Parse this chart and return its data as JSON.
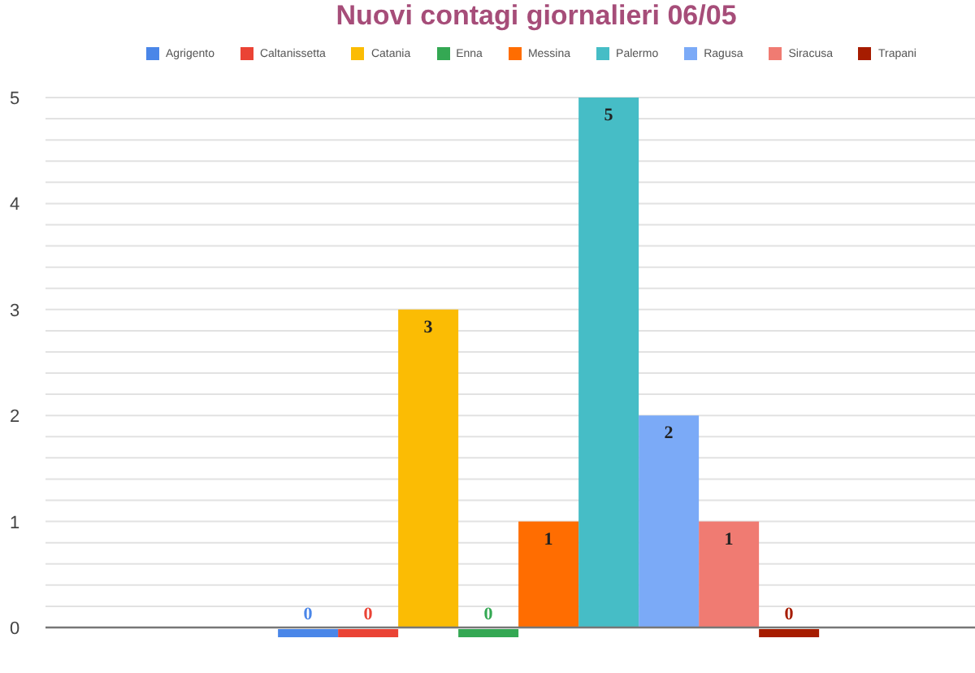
{
  "chart_data": {
    "type": "bar",
    "title": "Nuovi contagi giornalieri 06/05",
    "categories": [
      null
    ],
    "series": [
      {
        "name": "Agrigento",
        "color": "#4a86e8",
        "values": [
          0
        ]
      },
      {
        "name": "Caltanissetta",
        "color": "#ea4335",
        "values": [
          0
        ]
      },
      {
        "name": "Catania",
        "color": "#fbbc04",
        "values": [
          3
        ]
      },
      {
        "name": "Enna",
        "color": "#34a853",
        "values": [
          0
        ]
      },
      {
        "name": "Messina",
        "color": "#ff6d01",
        "values": [
          1
        ]
      },
      {
        "name": "Palermo",
        "color": "#46bdc6",
        "values": [
          5
        ]
      },
      {
        "name": "Ragusa",
        "color": "#7baaf7",
        "values": [
          2
        ]
      },
      {
        "name": "Siracusa",
        "color": "#f07b72",
        "values": [
          1
        ]
      },
      {
        "name": "Trapani",
        "color": "#a61c00",
        "values": [
          0
        ]
      }
    ],
    "ylim": [
      0,
      5
    ],
    "yticks": [
      0,
      {
        "value": 0.2,
        "label": null
      },
      {
        "value": 0.4,
        "label": null
      },
      {
        "value": 0.6,
        "label": null
      },
      {
        "value": 0.8,
        "label": null
      },
      1,
      {
        "value": 1.2,
        "label": null
      },
      {
        "value": 1.4,
        "label": null
      },
      {
        "value": 1.6,
        "label": null
      },
      {
        "value": 1.8,
        "label": null
      },
      2,
      {
        "value": 2.2,
        "label": null
      },
      {
        "value": 2.4,
        "label": null
      },
      {
        "value": 2.6,
        "label": null
      },
      {
        "value": 2.8,
        "label": null
      },
      3,
      {
        "value": 3.2,
        "label": null
      },
      {
        "value": 3.4,
        "label": null
      },
      {
        "value": 3.6,
        "label": null
      },
      {
        "value": 3.8,
        "label": null
      },
      4,
      {
        "value": 4.2,
        "label": null
      },
      {
        "value": 4.4,
        "label": null
      },
      {
        "value": 4.6,
        "label": null
      },
      {
        "value": 4.8,
        "label": null
      },
      5
    ],
    "grid": "y",
    "legend": "top",
    "data_labels": true
  }
}
